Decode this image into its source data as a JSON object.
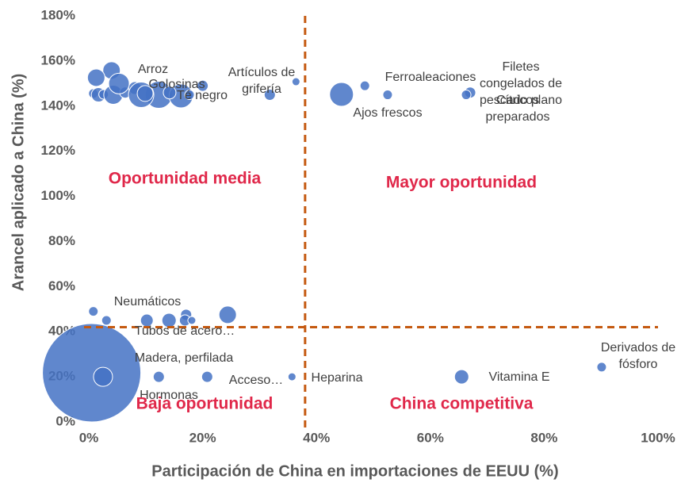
{
  "chart_data": {
    "type": "scatter",
    "xlabel": "Participación de China en importaciones de EEUU (%)",
    "ylabel": "Arancel aplicado a China (%)",
    "xlim": [
      0,
      100
    ],
    "ylim": [
      0,
      180
    ],
    "xticks": [
      {
        "value": 0,
        "label": "0%"
      },
      {
        "value": 20,
        "label": "20%"
      },
      {
        "value": 40,
        "label": "40%"
      },
      {
        "value": 60,
        "label": "60%"
      },
      {
        "value": 80,
        "label": "80%"
      },
      {
        "value": 100,
        "label": "100%"
      }
    ],
    "yticks": [
      {
        "value": 0,
        "label": "0%"
      },
      {
        "value": 20,
        "label": "20%"
      },
      {
        "value": 40,
        "label": "40%"
      },
      {
        "value": 60,
        "label": "60%"
      },
      {
        "value": 80,
        "label": "80%"
      },
      {
        "value": 100,
        "label": "100%"
      },
      {
        "value": 120,
        "label": "120%"
      },
      {
        "value": 140,
        "label": "140%"
      },
      {
        "value": 160,
        "label": "160%"
      },
      {
        "value": 180,
        "label": "180%"
      }
    ],
    "grid": false,
    "color": "#4472c4",
    "threshold_color": "#c55a11",
    "thresholds": {
      "x": 38,
      "y": 42
    },
    "annotations": [
      "Oportunidad media",
      "Mayor oportunidad",
      "Baja oportunidad",
      "China competitiva"
    ],
    "labels": [
      "Arroz",
      "Golosinas",
      "Té negro",
      "Artículos de\ngrifería",
      "Ferroaleaciones",
      "Ajos frescos",
      "Filetes\ncongelados de\npescado plano",
      "Cítricos\npreparados",
      "Neumáticos",
      "Tubos de acero…",
      "Madera, perfilada",
      "Hormonas",
      "Acceso…",
      "Heparina",
      "Vitamina E",
      "Derivados de\nfósforo",
      null,
      null,
      null,
      null,
      null,
      null,
      null,
      null,
      null,
      null,
      null,
      null,
      null,
      null,
      null,
      null,
      null,
      null,
      null,
      null,
      null,
      null
    ],
    "x": [
      4.0,
      12.3,
      16.2,
      36.4,
      48.5,
      44.4,
      67.0,
      66.3,
      3.1,
      10.2,
      0.5,
      12.3,
      20.8,
      35.7,
      65.5,
      90.1,
      1.3,
      0.8,
      1.7,
      2.6,
      4.3,
      6.4,
      8.1,
      9.2,
      5.3,
      9.9,
      14.2,
      17.7,
      20.0,
      31.8,
      52.5,
      0.8,
      17.1,
      16.9,
      18.1,
      14.1,
      24.4,
      2.5
    ],
    "y": [
      155.8,
      145,
      144.5,
      150.8,
      149,
      145.2,
      146,
      145,
      45,
      45,
      21.8,
      20,
      20,
      20,
      20,
      24.3,
      152.6,
      145.6,
      145,
      145.2,
      145,
      146,
      148,
      145,
      150,
      145.6,
      146,
      145,
      149,
      145,
      145,
      49,
      47.5,
      45,
      45,
      45,
      47.5,
      20
    ],
    "sizes": [
      121,
      289,
      225,
      25,
      36,
      225,
      49,
      36,
      36,
      64,
      3844,
      49,
      49,
      25,
      81,
      36,
      121,
      36,
      81,
      36,
      144,
      49,
      64,
      256,
      169,
      100,
      64,
      36,
      49,
      49,
      36,
      36,
      49,
      49,
      25,
      81,
      121,
      144
    ]
  }
}
